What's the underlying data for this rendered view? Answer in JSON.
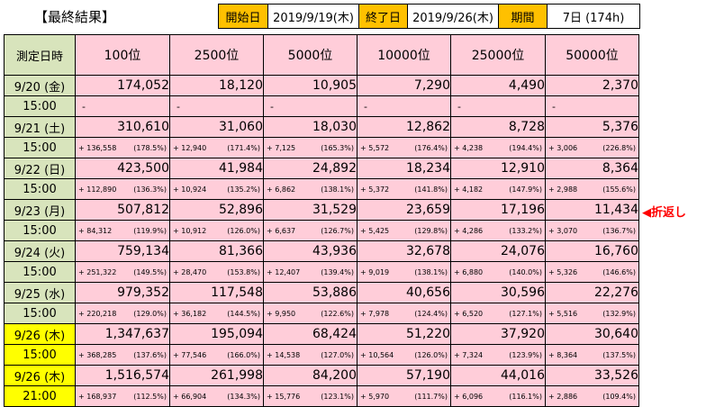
{
  "title": "【最終結果】",
  "info": {
    "start_label": "開始日",
    "start_value": "2019/9/19(木)",
    "end_label": "終了日",
    "end_value": "2019/9/26(木)",
    "period_label": "期間",
    "period_value": "7日 (174h)"
  },
  "table": {
    "corner": "測定日時",
    "headers": [
      "100位",
      "2500位",
      "5000位",
      "10000位",
      "25000位",
      "50000位"
    ],
    "rows": [
      {
        "date": "9/20 (金)",
        "time": "15:00",
        "highlight": false,
        "values": [
          "174,052",
          "18,120",
          "10,905",
          "7,290",
          "4,490",
          "2,370"
        ],
        "deltas": [
          [
            "-",
            ""
          ],
          [
            "-",
            ""
          ],
          [
            "-",
            ""
          ],
          [
            "-",
            ""
          ],
          [
            "-",
            ""
          ],
          [
            "-",
            ""
          ]
        ]
      },
      {
        "date": "9/21 (土)",
        "time": "15:00",
        "highlight": false,
        "values": [
          "310,610",
          "31,060",
          "18,030",
          "12,862",
          "8,728",
          "5,376"
        ],
        "deltas": [
          [
            "+ 136,558",
            "(178.5%)"
          ],
          [
            "+ 12,940",
            "(171.4%)"
          ],
          [
            "+ 7,125",
            "(165.3%)"
          ],
          [
            "+ 5,572",
            "(176.4%)"
          ],
          [
            "+ 4,238",
            "(194.4%)"
          ],
          [
            "+ 3,006",
            "(226.8%)"
          ]
        ]
      },
      {
        "date": "9/22 (日)",
        "time": "15:00",
        "highlight": false,
        "values": [
          "423,500",
          "41,984",
          "24,892",
          "18,234",
          "12,910",
          "8,364"
        ],
        "deltas": [
          [
            "+ 112,890",
            "(136.3%)"
          ],
          [
            "+ 10,924",
            "(135.2%)"
          ],
          [
            "+ 6,862",
            "(138.1%)"
          ],
          [
            "+ 5,372",
            "(141.8%)"
          ],
          [
            "+ 4,182",
            "(147.9%)"
          ],
          [
            "+ 2,988",
            "(155.6%)"
          ]
        ]
      },
      {
        "date": "9/23 (月)",
        "time": "15:00",
        "highlight": false,
        "values": [
          "507,812",
          "52,896",
          "31,529",
          "23,659",
          "17,196",
          "11,434"
        ],
        "deltas": [
          [
            "+ 84,312",
            "(119.9%)"
          ],
          [
            "+ 10,912",
            "(126.0%)"
          ],
          [
            "+ 6,637",
            "(126.7%)"
          ],
          [
            "+ 5,425",
            "(129.8%)"
          ],
          [
            "+ 4,286",
            "(133.2%)"
          ],
          [
            "+ 3,070",
            "(136.7%)"
          ]
        ]
      },
      {
        "date": "9/24 (火)",
        "time": "15:00",
        "highlight": false,
        "values": [
          "759,134",
          "81,366",
          "43,936",
          "32,678",
          "24,076",
          "16,760"
        ],
        "deltas": [
          [
            "+ 251,322",
            "(149.5%)"
          ],
          [
            "+ 28,470",
            "(153.8%)"
          ],
          [
            "+ 12,407",
            "(139.4%)"
          ],
          [
            "+ 9,019",
            "(138.1%)"
          ],
          [
            "+ 6,880",
            "(140.0%)"
          ],
          [
            "+ 5,326",
            "(146.6%)"
          ]
        ]
      },
      {
        "date": "9/25 (水)",
        "time": "15:00",
        "highlight": false,
        "values": [
          "979,352",
          "117,548",
          "53,886",
          "40,656",
          "30,596",
          "22,276"
        ],
        "deltas": [
          [
            "+ 220,218",
            "(129.0%)"
          ],
          [
            "+ 36,182",
            "(144.5%)"
          ],
          [
            "+ 9,950",
            "(122.6%)"
          ],
          [
            "+ 7,978",
            "(124.4%)"
          ],
          [
            "+ 6,520",
            "(127.1%)"
          ],
          [
            "+ 5,516",
            "(132.9%)"
          ]
        ]
      },
      {
        "date": "9/26 (木)",
        "time": "15:00",
        "highlight": true,
        "values": [
          "1,347,637",
          "195,094",
          "68,424",
          "51,220",
          "37,920",
          "30,640"
        ],
        "deltas": [
          [
            "+ 368,285",
            "(137.6%)"
          ],
          [
            "+ 77,546",
            "(166.0%)"
          ],
          [
            "+ 14,538",
            "(127.0%)"
          ],
          [
            "+ 10,564",
            "(126.0%)"
          ],
          [
            "+ 7,324",
            "(123.9%)"
          ],
          [
            "+ 8,364",
            "(137.5%)"
          ]
        ]
      },
      {
        "date": "9/26 (木)",
        "time": "21:00",
        "highlight": true,
        "values": [
          "1,516,574",
          "261,998",
          "84,200",
          "57,190",
          "44,016",
          "33,526"
        ],
        "deltas": [
          [
            "+ 168,937",
            "(112.5%)"
          ],
          [
            "+ 66,904",
            "(134.3%)"
          ],
          [
            "+ 15,776",
            "(123.1%)"
          ],
          [
            "+ 5,970",
            "(111.7%)"
          ],
          [
            "+ 6,096",
            "(116.1%)"
          ],
          [
            "+ 2,886",
            "(109.4%)"
          ]
        ]
      }
    ]
  },
  "annotation": "◀折返し"
}
